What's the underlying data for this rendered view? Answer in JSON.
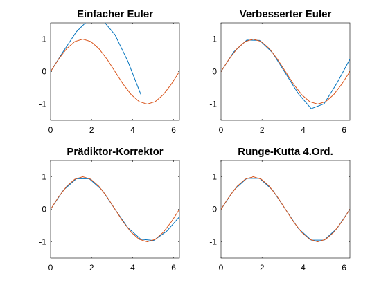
{
  "chart_data": [
    {
      "type": "line",
      "title": "Einfacher Euler",
      "xlim": [
        0,
        6.2832
      ],
      "ylim": [
        -1.5,
        1.5
      ],
      "xticks": [
        0,
        2,
        4,
        6
      ],
      "yticks": [
        -1,
        0,
        1
      ],
      "grid": false,
      "series": [
        {
          "color": "#0072BD",
          "x": [
            0,
            0.6283,
            1.2566,
            1.885,
            2.5133,
            3.1416,
            3.7699,
            4.3982
          ],
          "y": [
            0,
            0.628,
            1.2256,
            1.6149,
            1.6047,
            1.1316,
            0.3122,
            -0.7006
          ]
        },
        {
          "color": "#D95319",
          "x": [
            0,
            0.3927,
            0.7854,
            1.1781,
            1.5708,
            1.9635,
            2.3562,
            2.7489,
            3.1416,
            3.5343,
            3.927,
            4.3197,
            4.7124,
            5.1051,
            5.4978,
            5.8905,
            6.2832
          ],
          "y": [
            0,
            0.383,
            0.707,
            0.924,
            1.0,
            0.924,
            0.707,
            0.383,
            0,
            -0.383,
            -0.707,
            -0.924,
            -1.0,
            -0.924,
            -0.707,
            -0.383,
            0
          ]
        }
      ]
    },
    {
      "type": "line",
      "title": "Verbesserter Euler",
      "xlim": [
        0,
        6.2832
      ],
      "ylim": [
        -1.5,
        1.5
      ],
      "xticks": [
        0,
        2,
        4,
        6
      ],
      "yticks": [
        -1,
        0,
        1
      ],
      "grid": false,
      "series": [
        {
          "color": "#0072BD",
          "x": [
            0,
            0.6283,
            1.2566,
            1.885,
            2.5133,
            3.1416,
            3.7699,
            4.3982,
            5.0265,
            5.6549,
            6.2832
          ],
          "y": [
            0,
            0.61,
            0.97,
            0.96,
            0.58,
            -0.05,
            -0.68,
            -1.14,
            -0.99,
            -0.35,
            0.38
          ]
        },
        {
          "color": "#D95319",
          "x": [
            0,
            0.3927,
            0.7854,
            1.1781,
            1.5708,
            1.9635,
            2.3562,
            2.7489,
            3.1416,
            3.5343,
            3.927,
            4.3197,
            4.7124,
            5.1051,
            5.4978,
            5.8905,
            6.2832
          ],
          "y": [
            0,
            0.383,
            0.707,
            0.924,
            1.0,
            0.924,
            0.707,
            0.383,
            0,
            -0.383,
            -0.707,
            -0.924,
            -1.0,
            -0.924,
            -0.707,
            -0.383,
            0
          ]
        }
      ]
    },
    {
      "type": "line",
      "title": "Prädiktor-Korrektor",
      "xlim": [
        0,
        6.2832
      ],
      "ylim": [
        -1.5,
        1.5
      ],
      "xticks": [
        0,
        2,
        4,
        6
      ],
      "yticks": [
        -1,
        0,
        1
      ],
      "grid": false,
      "series": [
        {
          "color": "#0072BD",
          "x": [
            0,
            0.6283,
            1.2566,
            1.885,
            2.5133,
            3.1416,
            3.7699,
            4.3982,
            5.0265,
            5.6549,
            6.2832
          ],
          "y": [
            0,
            0.59,
            0.94,
            0.94,
            0.59,
            0,
            -0.57,
            -0.92,
            -0.96,
            -0.68,
            -0.23
          ]
        },
        {
          "color": "#D95319",
          "x": [
            0,
            0.3927,
            0.7854,
            1.1781,
            1.5708,
            1.9635,
            2.3562,
            2.7489,
            3.1416,
            3.5343,
            3.927,
            4.3197,
            4.7124,
            5.1051,
            5.4978,
            5.8905,
            6.2832
          ],
          "y": [
            0,
            0.383,
            0.707,
            0.924,
            1.0,
            0.924,
            0.707,
            0.383,
            0,
            -0.383,
            -0.707,
            -0.924,
            -1.0,
            -0.924,
            -0.707,
            -0.383,
            0
          ]
        }
      ]
    },
    {
      "type": "line",
      "title": "Runge-Kutta 4.Ord.",
      "xlim": [
        0,
        6.2832
      ],
      "ylim": [
        -1.5,
        1.5
      ],
      "xticks": [
        0,
        2,
        4,
        6
      ],
      "yticks": [
        -1,
        0,
        1
      ],
      "grid": false,
      "series": [
        {
          "color": "#0072BD",
          "x": [
            0,
            0.6283,
            1.2566,
            1.885,
            2.5133,
            3.1416,
            3.7699,
            4.3982,
            5.0265,
            5.6549,
            6.2832
          ],
          "y": [
            0,
            0.59,
            0.95,
            0.95,
            0.59,
            0,
            -0.59,
            -0.95,
            -0.95,
            -0.59,
            0
          ]
        },
        {
          "color": "#D95319",
          "x": [
            0,
            0.3927,
            0.7854,
            1.1781,
            1.5708,
            1.9635,
            2.3562,
            2.7489,
            3.1416,
            3.5343,
            3.927,
            4.3197,
            4.7124,
            5.1051,
            5.4978,
            5.8905,
            6.2832
          ],
          "y": [
            0,
            0.383,
            0.707,
            0.924,
            1.0,
            0.924,
            0.707,
            0.383,
            0,
            -0.383,
            -0.707,
            -0.924,
            -1.0,
            -0.924,
            -0.707,
            -0.383,
            0
          ]
        }
      ]
    }
  ]
}
